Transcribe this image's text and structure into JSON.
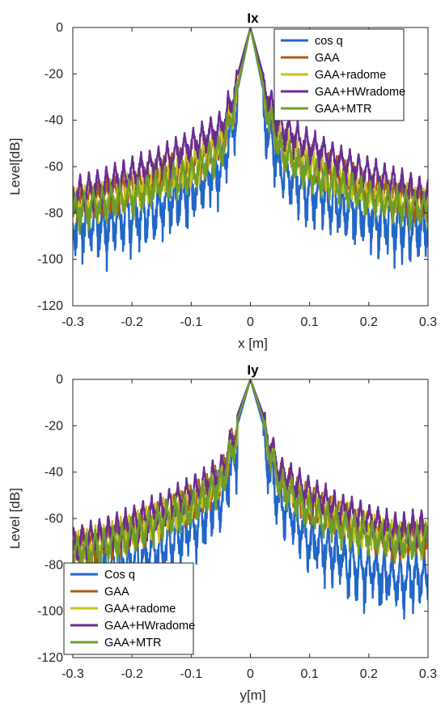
{
  "chart_data": [
    {
      "type": "line",
      "title": "Ix",
      "xlabel": "x [m]",
      "ylabel": "Level[dB]",
      "xlim": [
        -0.3,
        0.3
      ],
      "ylim": [
        -120,
        0
      ],
      "xticks": [
        -0.3,
        -0.2,
        -0.1,
        0,
        0.1,
        0.2,
        0.3
      ],
      "xtick_labels": [
        "-0.3",
        "-0.2",
        "-0.1",
        "0",
        "0.1",
        "0.2",
        "0.3"
      ],
      "yticks": [
        -120,
        -100,
        -80,
        -60,
        -40,
        -20,
        0
      ],
      "ytick_labels": [
        "-120",
        "-100",
        "-80",
        "-60",
        "-40",
        "-20",
        "0"
      ],
      "grid": false,
      "legend_position": "top-right",
      "series": [
        {
          "name": "cos q",
          "color": "#2166c9",
          "x": [
            -0.3,
            -0.25,
            -0.2,
            -0.15,
            -0.1,
            -0.05,
            -0.02,
            0,
            0.02,
            0.05,
            0.1,
            0.15,
            0.2,
            0.25,
            0.3
          ],
          "values": [
            -75,
            -74,
            -70,
            -66,
            -60,
            -50,
            -25,
            0,
            -25,
            -50,
            -60,
            -66,
            -70,
            -74,
            -75
          ]
        },
        {
          "name": "GAA",
          "color": "#a85b14",
          "x": [
            -0.3,
            -0.25,
            -0.2,
            -0.15,
            -0.1,
            -0.05,
            -0.02,
            0,
            0.02,
            0.05,
            0.1,
            0.15,
            0.2,
            0.25,
            0.3
          ],
          "values": [
            -71,
            -68,
            -64,
            -58,
            -53,
            -44,
            -22,
            0,
            -22,
            -44,
            -53,
            -58,
            -64,
            -68,
            -71
          ]
        },
        {
          "name": "GAA+radome",
          "color": "#c9c21c",
          "x": [
            -0.3,
            -0.25,
            -0.2,
            -0.15,
            -0.1,
            -0.05,
            -0.02,
            0,
            0.02,
            0.05,
            0.1,
            0.15,
            0.2,
            0.25,
            0.3
          ],
          "values": [
            -72,
            -69,
            -65,
            -59,
            -54,
            -45,
            -23,
            0,
            -23,
            -45,
            -54,
            -59,
            -65,
            -69,
            -72
          ]
        },
        {
          "name": "GAA+HWradome",
          "color": "#6a2d8f",
          "x": [
            -0.3,
            -0.25,
            -0.2,
            -0.15,
            -0.1,
            -0.05,
            -0.02,
            0,
            0.02,
            0.05,
            0.1,
            0.15,
            0.2,
            0.25,
            0.3
          ],
          "values": [
            -67,
            -63,
            -58,
            -53,
            -46,
            -38,
            -19,
            0,
            -19,
            -38,
            -46,
            -53,
            -58,
            -63,
            -67
          ]
        },
        {
          "name": "GAA+MTR",
          "color": "#6e9e2a",
          "x": [
            -0.3,
            -0.25,
            -0.2,
            -0.15,
            -0.1,
            -0.05,
            -0.02,
            0,
            0.02,
            0.05,
            0.1,
            0.15,
            0.2,
            0.25,
            0.3
          ],
          "values": [
            -74,
            -71,
            -68,
            -63,
            -58,
            -48,
            -24,
            0,
            -24,
            -48,
            -58,
            -63,
            -68,
            -71,
            -74
          ]
        }
      ]
    },
    {
      "type": "line",
      "title": "Iy",
      "xlabel": "y[m]",
      "ylabel": "Level [dB]",
      "xlim": [
        -0.3,
        0.3
      ],
      "ylim": [
        -120,
        0
      ],
      "xticks": [
        -0.3,
        -0.2,
        -0.1,
        0,
        0.1,
        0.2,
        0.3
      ],
      "xtick_labels": [
        "-0.3",
        "-0.2",
        "-0.1",
        "0",
        "0.1",
        "0.2",
        "0.3"
      ],
      "yticks": [
        -120,
        -100,
        -80,
        -60,
        -40,
        -20,
        0
      ],
      "ytick_labels": [
        "-120",
        "-100",
        "-80",
        "-60",
        "-40",
        "-20",
        "0"
      ],
      "grid": false,
      "legend_position": "bottom-left",
      "series": [
        {
          "name": "Cos q",
          "color": "#2166c9",
          "x": [
            -0.3,
            -0.25,
            -0.2,
            -0.15,
            -0.1,
            -0.05,
            -0.02,
            0,
            0.02,
            0.05,
            0.1,
            0.15,
            0.2,
            0.25,
            0.3
          ],
          "values": [
            -74,
            -72,
            -68,
            -62,
            -54,
            -40,
            -18,
            0,
            -18,
            -42,
            -58,
            -66,
            -72,
            -76,
            -74
          ]
        },
        {
          "name": "GAA",
          "color": "#a85b14",
          "x": [
            -0.3,
            -0.25,
            -0.2,
            -0.15,
            -0.1,
            -0.05,
            -0.02,
            0,
            0.02,
            0.05,
            0.1,
            0.15,
            0.2,
            0.25,
            0.3
          ],
          "values": [
            -68,
            -65,
            -60,
            -55,
            -48,
            -38,
            -15,
            0,
            -15,
            -38,
            -48,
            -55,
            -60,
            -64,
            -63
          ]
        },
        {
          "name": "GAA+radome",
          "color": "#c9c21c",
          "x": [
            -0.3,
            -0.25,
            -0.2,
            -0.15,
            -0.1,
            -0.05,
            -0.02,
            0,
            0.02,
            0.05,
            0.1,
            0.15,
            0.2,
            0.25,
            0.3
          ],
          "values": [
            -68,
            -65,
            -60,
            -54,
            -48,
            -38,
            -15,
            0,
            -15,
            -38,
            -48,
            -54,
            -60,
            -64,
            -63
          ]
        },
        {
          "name": "GAA+HWradome",
          "color": "#6a2d8f",
          "x": [
            -0.3,
            -0.25,
            -0.2,
            -0.15,
            -0.1,
            -0.05,
            -0.02,
            0,
            0.02,
            0.05,
            0.1,
            0.15,
            0.2,
            0.25,
            0.3
          ],
          "values": [
            -66,
            -62,
            -57,
            -51,
            -44,
            -35,
            -14,
            0,
            -14,
            -35,
            -44,
            -51,
            -56,
            -60,
            -58
          ]
        },
        {
          "name": "GAA+MTR",
          "color": "#6e9e2a",
          "x": [
            -0.3,
            -0.25,
            -0.2,
            -0.15,
            -0.1,
            -0.05,
            -0.02,
            0,
            0.02,
            0.05,
            0.1,
            0.15,
            0.2,
            0.25,
            0.3
          ],
          "values": [
            -70,
            -67,
            -62,
            -56,
            -50,
            -40,
            -16,
            0,
            -16,
            -40,
            -52,
            -58,
            -63,
            -66,
            -64
          ]
        }
      ]
    }
  ]
}
